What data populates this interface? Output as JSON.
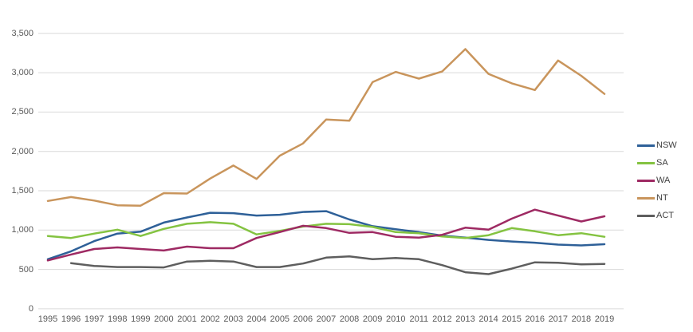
{
  "chart_data": {
    "type": "line",
    "x": [
      1995,
      1996,
      1997,
      1998,
      1999,
      2000,
      2001,
      2002,
      2003,
      2004,
      2005,
      2006,
      2007,
      2008,
      2009,
      2010,
      2011,
      2012,
      2013,
      2014,
      2015,
      2016,
      2017,
      2018,
      2019
    ],
    "series": [
      {
        "name": "NSW",
        "color": "#2E6098",
        "values": [
          630,
          730,
          860,
          955,
          980,
          1095,
          1160,
          1220,
          1215,
          1185,
          1195,
          1230,
          1240,
          1135,
          1050,
          1010,
          975,
          930,
          905,
          875,
          855,
          840,
          815,
          805,
          820
        ]
      },
      {
        "name": "SA",
        "color": "#84C341",
        "values": [
          925,
          900,
          955,
          1005,
          925,
          1015,
          1080,
          1100,
          1080,
          945,
          990,
          1045,
          1080,
          1075,
          1040,
          975,
          960,
          920,
          900,
          935,
          1025,
          985,
          935,
          960,
          915
        ]
      },
      {
        "name": "WA",
        "color": "#9E2A63",
        "values": [
          615,
          690,
          760,
          780,
          760,
          740,
          790,
          770,
          770,
          900,
          975,
          1055,
          1025,
          965,
          975,
          915,
          905,
          940,
          1030,
          1005,
          1145,
          1260,
          1185,
          1110,
          1175
        ]
      },
      {
        "name": "NT",
        "color": "#C9955C",
        "values": [
          1370,
          1420,
          1375,
          1315,
          1310,
          1470,
          1465,
          1655,
          1820,
          1650,
          1945,
          2100,
          2405,
          2390,
          2880,
          3010,
          2925,
          3015,
          3300,
          2985,
          2865,
          2780,
          3155,
          2960,
          2730
        ]
      },
      {
        "name": "ACT",
        "color": "#5E5E5E",
        "values": [
          null,
          580,
          545,
          530,
          530,
          525,
          600,
          610,
          600,
          530,
          530,
          575,
          650,
          665,
          630,
          645,
          630,
          555,
          465,
          440,
          510,
          590,
          585,
          565,
          570
        ]
      }
    ],
    "ylim": [
      0,
      3500
    ],
    "ytick_step": 500,
    "ytick_labels": [
      "0",
      "500",
      "1,000",
      "1,500",
      "2,000",
      "2,500",
      "3,000",
      "3,500"
    ],
    "xtick_labels": [
      "1995",
      "1996",
      "1997",
      "1998",
      "1999",
      "2000",
      "2001",
      "2002",
      "2003",
      "2004",
      "2005",
      "2006",
      "2007",
      "2008",
      "2009",
      "2010",
      "2011",
      "2012",
      "2013",
      "2014",
      "2015",
      "2016",
      "2017",
      "2018",
      "2019"
    ],
    "grid": "horizontal",
    "legend_position": "right",
    "colors": {
      "axis_labels": "#595959",
      "legend_text": "#404040",
      "gridlines": "#D9D9D9",
      "background": "#FFFFFF"
    }
  }
}
